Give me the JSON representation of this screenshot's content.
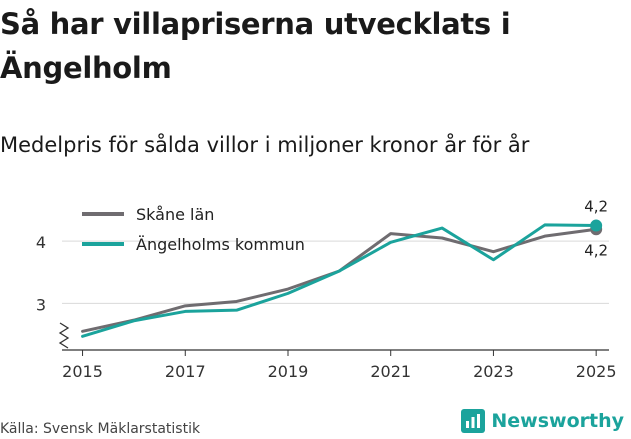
{
  "title": "Så har villapriserna utvecklats i Ängelholm",
  "subtitle": "Medelpris för sålda villor i miljoner kronor år för år",
  "source": "Källa: Svensk Mäklarstatistik",
  "brand": {
    "name": "Newsworthy",
    "color": "#1ba39c"
  },
  "chart_data": {
    "type": "line",
    "x": [
      2015,
      2016,
      2017,
      2018,
      2019,
      2020,
      2021,
      2022,
      2023,
      2024,
      2025
    ],
    "xticks": [
      2015,
      2017,
      2019,
      2021,
      2023,
      2025
    ],
    "yticks": [
      3,
      4
    ],
    "ylim": [
      2.25,
      4.5
    ],
    "xlim": [
      2014.6,
      2025.25
    ],
    "grid": true,
    "legend_position": "top-left",
    "series": [
      {
        "name": "Skåne län",
        "color": "#6f6c70",
        "values": [
          2.55,
          2.73,
          2.96,
          3.03,
          3.23,
          3.52,
          4.12,
          4.05,
          3.83,
          4.08,
          4.19
        ],
        "end_label": "4,2"
      },
      {
        "name": "Ängelholms kommun",
        "color": "#1ba39c",
        "values": [
          2.47,
          2.72,
          2.87,
          2.89,
          3.16,
          3.52,
          3.98,
          4.21,
          3.7,
          4.26,
          4.25
        ],
        "end_label": "4,2"
      }
    ]
  }
}
